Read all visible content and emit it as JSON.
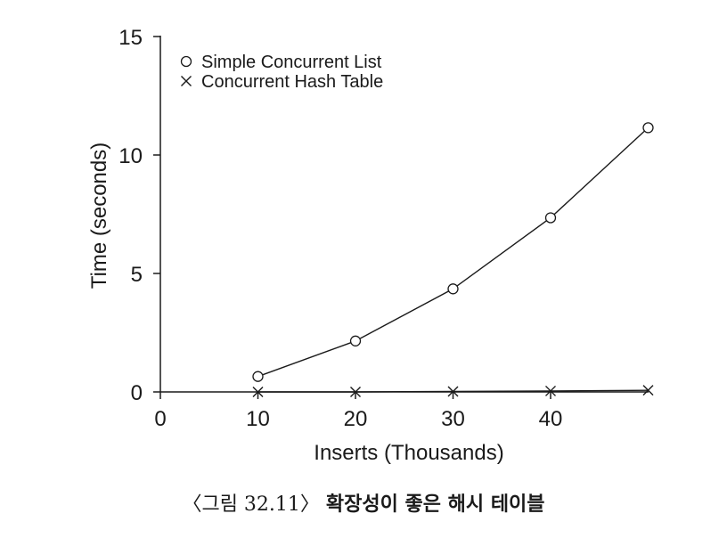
{
  "chart_data": {
    "type": "line",
    "xlabel": "Inserts (Thousands)",
    "ylabel": "Time (seconds)",
    "xlim": [
      0,
      51
    ],
    "ylim": [
      0,
      15
    ],
    "xticks": [
      0,
      10,
      20,
      30,
      40
    ],
    "yticks": [
      0,
      5,
      10,
      15
    ],
    "legend_position": "top-left",
    "series": [
      {
        "name": "Simple Concurrent List",
        "marker": "circle",
        "x": [
          10,
          20,
          30,
          40,
          50
        ],
        "y": [
          0.65,
          2.15,
          4.35,
          7.35,
          11.15
        ]
      },
      {
        "name": "Concurrent Hash Table",
        "marker": "x",
        "x": [
          10,
          20,
          30,
          40,
          50
        ],
        "y": [
          0.0,
          0.0,
          0.02,
          0.04,
          0.07
        ]
      }
    ]
  },
  "caption": {
    "figure_number": "〈그림 32.11〉",
    "title": "확장성이 좋은 해시 테이블"
  },
  "colors": {
    "ink": "#1a1a1a",
    "background": "#ffffff"
  }
}
